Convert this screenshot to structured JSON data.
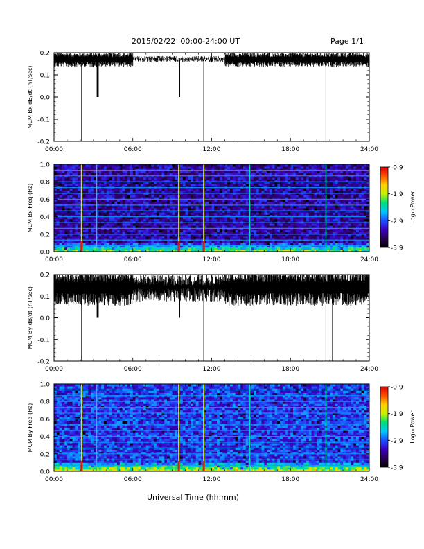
{
  "header": {
    "title": "2015/02/22  00:00-24:00 UT",
    "page": "Page 1/1"
  },
  "footer": {
    "xlabel": "Universal Time (hh:mm)"
  },
  "time_ticks": [
    "00:00",
    "06:00",
    "12:00",
    "18:00",
    "24:00"
  ],
  "colorbar": {
    "label": "Log₁₀ Power",
    "ticks": [
      {
        "value": -0.9,
        "label": "-0.9"
      },
      {
        "value": -1.9,
        "label": "-1.9"
      },
      {
        "value": -2.9,
        "label": "-2.9"
      },
      {
        "value": -3.9,
        "label": "-3.9"
      }
    ],
    "range": [
      -3.9,
      -0.9
    ],
    "colors": [
      "#000000",
      "#2a0052",
      "#3a00c0",
      "#1f4fff",
      "#00c8ff",
      "#00e078",
      "#c8f000",
      "#ffd000",
      "#ff5000",
      "#e00000"
    ]
  },
  "chart_data": [
    {
      "type": "line",
      "ylabel": "MCM Bx dB/dt (nT/sec)",
      "xlabel": "",
      "xlim": [
        0,
        24
      ],
      "ylim": [
        -0.2,
        0.2
      ],
      "yticks": [
        "0.2",
        "0.1",
        "0.0",
        "-0.1",
        "-0.2"
      ],
      "ytick_values": [
        0.2,
        0.1,
        0.0,
        -0.1,
        -0.2
      ],
      "baseline": 0.17,
      "noise_amplitude": 0.02,
      "features": [
        {
          "x": 2.1,
          "min": -0.2,
          "kind": "spike"
        },
        {
          "x": 3.25,
          "width": 0.15,
          "min": 0.0,
          "kind": "dip"
        },
        {
          "x": 9.5,
          "width": 0.1,
          "min": 0.0,
          "kind": "dip"
        },
        {
          "x": 11.4,
          "min": -0.2,
          "kind": "spike"
        },
        {
          "x": 20.7,
          "min": -0.2,
          "kind": "spike"
        }
      ]
    },
    {
      "type": "heatmap",
      "ylabel": "MCM Bx Freq (Hz)",
      "xlim": [
        0,
        24
      ],
      "ylim": [
        0,
        1.0
      ],
      "yticks": [
        "1.0",
        "0.8",
        "0.6",
        "0.4",
        "0.2",
        "0.0"
      ],
      "ytick_values": [
        1.0,
        0.8,
        0.6,
        0.4,
        0.2,
        0.0
      ],
      "zlim": [
        -3.9,
        -0.9
      ],
      "background_power": -3.3,
      "harmonic_lines_hz": [
        0.067,
        0.133,
        0.2,
        0.267,
        0.333,
        0.4,
        0.467,
        0.533,
        0.6,
        0.667,
        0.733,
        0.8,
        0.867,
        0.933,
        1.0
      ],
      "broadband_events_ut": [
        2.1,
        3.25,
        9.5,
        11.4,
        14.9,
        20.7
      ]
    },
    {
      "type": "line",
      "ylabel": "MCM By dB/dt (nT/sec)",
      "xlabel": "",
      "xlim": [
        0,
        24
      ],
      "ylim": [
        -0.2,
        0.2
      ],
      "yticks": [
        "0.2",
        "0.1",
        "0.0",
        "-0.1",
        "-0.2"
      ],
      "ytick_values": [
        0.2,
        0.1,
        0.0,
        -0.1,
        -0.2
      ],
      "baseline": 0.14,
      "noise_amplitude": 0.05,
      "features": [
        {
          "x": 2.1,
          "min": -0.2,
          "kind": "spike"
        },
        {
          "x": 3.25,
          "width": 0.15,
          "min": 0.0,
          "kind": "dip"
        },
        {
          "x": 9.5,
          "width": 0.1,
          "min": 0.0,
          "kind": "dip"
        },
        {
          "x": 11.4,
          "min": -0.2,
          "kind": "spike"
        },
        {
          "x": 20.7,
          "min": -0.2,
          "kind": "spike"
        },
        {
          "x": 21.2,
          "min": -0.2,
          "kind": "spike"
        }
      ]
    },
    {
      "type": "heatmap",
      "ylabel": "MCM By Freq (Hz)",
      "xlim": [
        0,
        24
      ],
      "ylim": [
        0,
        1.0
      ],
      "yticks": [
        "1.0",
        "0.8",
        "0.6",
        "0.4",
        "0.2",
        "0.0"
      ],
      "ytick_values": [
        1.0,
        0.8,
        0.6,
        0.4,
        0.2,
        0.0
      ],
      "zlim": [
        -3.9,
        -0.9
      ],
      "background_power": -3.0,
      "harmonic_lines_hz": [
        0.067,
        0.133,
        0.2,
        0.267,
        0.333,
        0.4,
        0.467,
        0.533,
        0.6,
        0.667,
        0.733,
        0.8,
        0.867,
        0.933,
        1.0
      ],
      "broadband_events_ut": [
        2.1,
        3.25,
        9.5,
        11.4,
        14.9,
        20.7
      ]
    }
  ]
}
